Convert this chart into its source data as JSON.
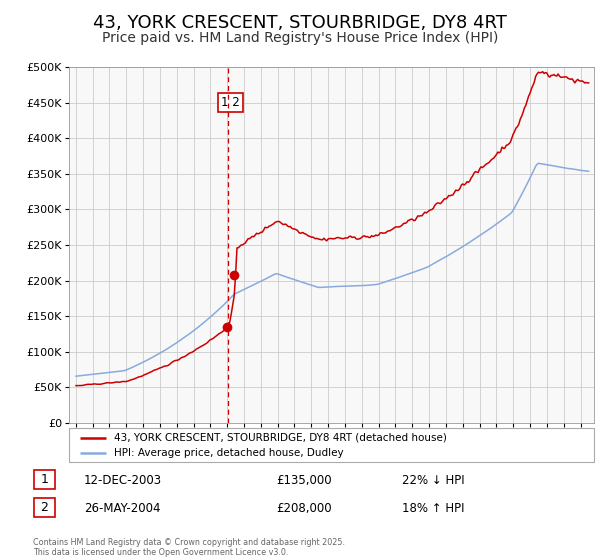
{
  "title": "43, YORK CRESCENT, STOURBRIDGE, DY8 4RT",
  "subtitle": "Price paid vs. HM Land Registry's House Price Index (HPI)",
  "legend_label_red": "43, YORK CRESCENT, STOURBRIDGE, DY8 4RT (detached house)",
  "legend_label_blue": "HPI: Average price, detached house, Dudley",
  "footer": "Contains HM Land Registry data © Crown copyright and database right 2025.\nThis data is licensed under the Open Government Licence v3.0.",
  "transaction1_date": "12-DEC-2003",
  "transaction1_price": "£135,000",
  "transaction1_hpi": "22% ↓ HPI",
  "transaction2_date": "26-MAY-2004",
  "transaction2_price": "£208,000",
  "transaction2_hpi": "18% ↑ HPI",
  "vline_x": 2004.05,
  "marker1_x": 2003.96,
  "marker1_y": 135000,
  "marker2_x": 2004.42,
  "marker2_y": 208000,
  "ylim": [
    0,
    500000
  ],
  "yticks": [
    0,
    50000,
    100000,
    150000,
    200000,
    250000,
    300000,
    350000,
    400000,
    450000,
    500000
  ],
  "xlim_min": 1994.6,
  "xlim_max": 2025.8,
  "red_color": "#cc0000",
  "blue_color": "#88aadd",
  "vline_color": "#cc0000",
  "grid_color": "#cccccc",
  "title_fontsize": 13,
  "subtitle_fontsize": 10
}
